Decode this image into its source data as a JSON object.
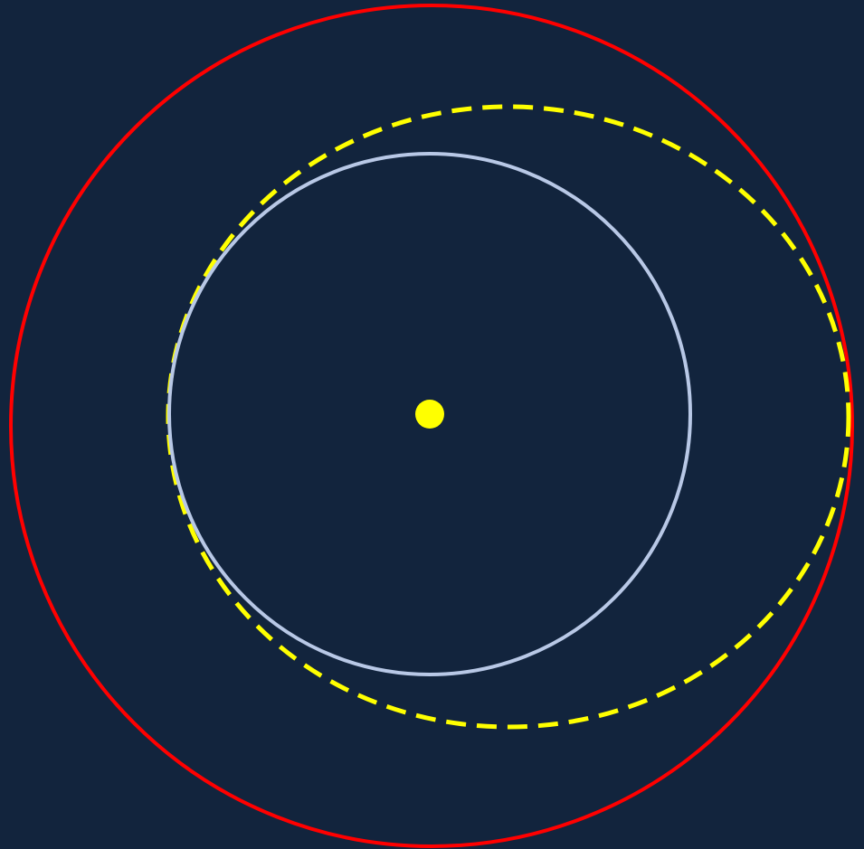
{
  "colors": {
    "background": "#12243d",
    "outer_orbit": "#ff0000",
    "transfer_orbit": "#ffff00",
    "inner_orbit": "#b8c8e6",
    "central_body": "#ffff00"
  },
  "elements": {
    "outer_orbit": {
      "style": "solid"
    },
    "transfer_orbit": {
      "style": "dashed"
    },
    "inner_orbit": {
      "style": "solid"
    },
    "central_body": {
      "shape": "filled-circle"
    }
  }
}
